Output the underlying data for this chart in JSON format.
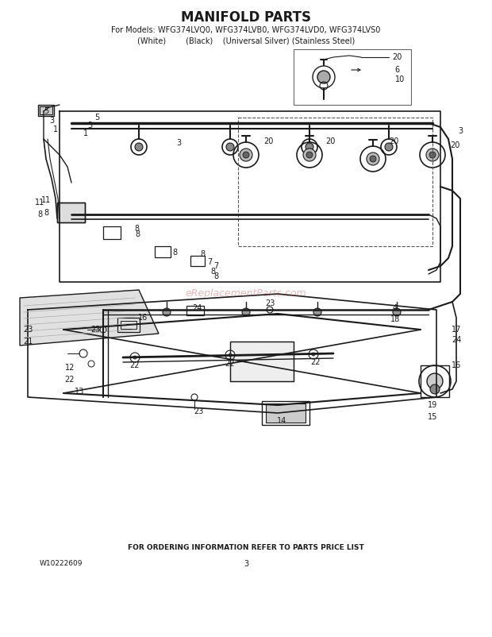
{
  "title": "MANIFOLD PARTS",
  "subtitle_line1": "For Models: WFG374LVQ0, WFG374LVB0, WFG374LVD0, WFG374LVS0",
  "subtitle_line2": "(White)        (Black)    (Universal Silver) (Stainless Steel)",
  "footer_text": "FOR ORDERING INFORMATION REFER TO PARTS PRICE LIST",
  "doc_number": "W10222609",
  "page_number": "3",
  "bg_color": "#ffffff",
  "dc": "#1a1a1a",
  "watermark_text": "eReplacementParts.com",
  "watermark_color": "#cc4444",
  "watermark_alpha": 0.38
}
